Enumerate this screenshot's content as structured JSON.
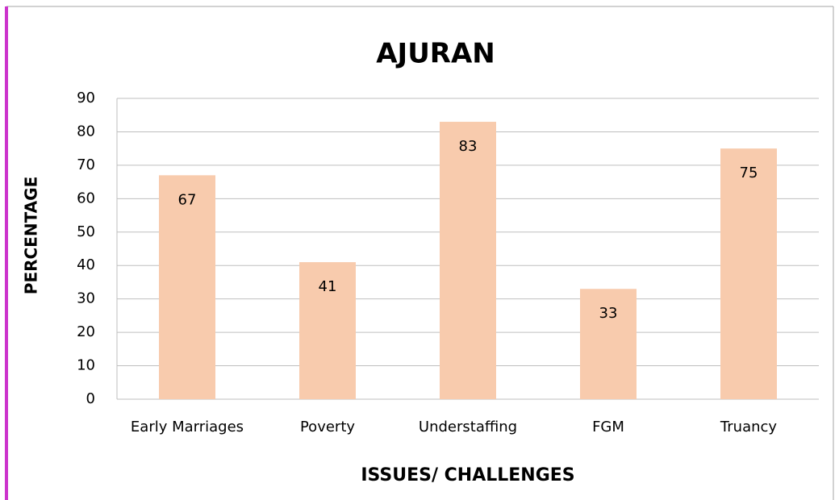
{
  "chart_data": {
    "type": "bar",
    "title": "AJURAN",
    "x_label": "ISSUES/ CHALLENGES",
    "y_label": "PERCENTAGE",
    "categories": [
      "Early Marriages",
      "Poverty",
      "Understaffing",
      "FGM",
      "Truancy"
    ],
    "values": [
      67,
      41,
      83,
      33,
      75
    ],
    "color": "#f8cbad",
    "ylim": [
      0,
      90
    ],
    "yticks": [
      0,
      10,
      20,
      30,
      40,
      50,
      60,
      70,
      80,
      90
    ],
    "grid": true
  }
}
